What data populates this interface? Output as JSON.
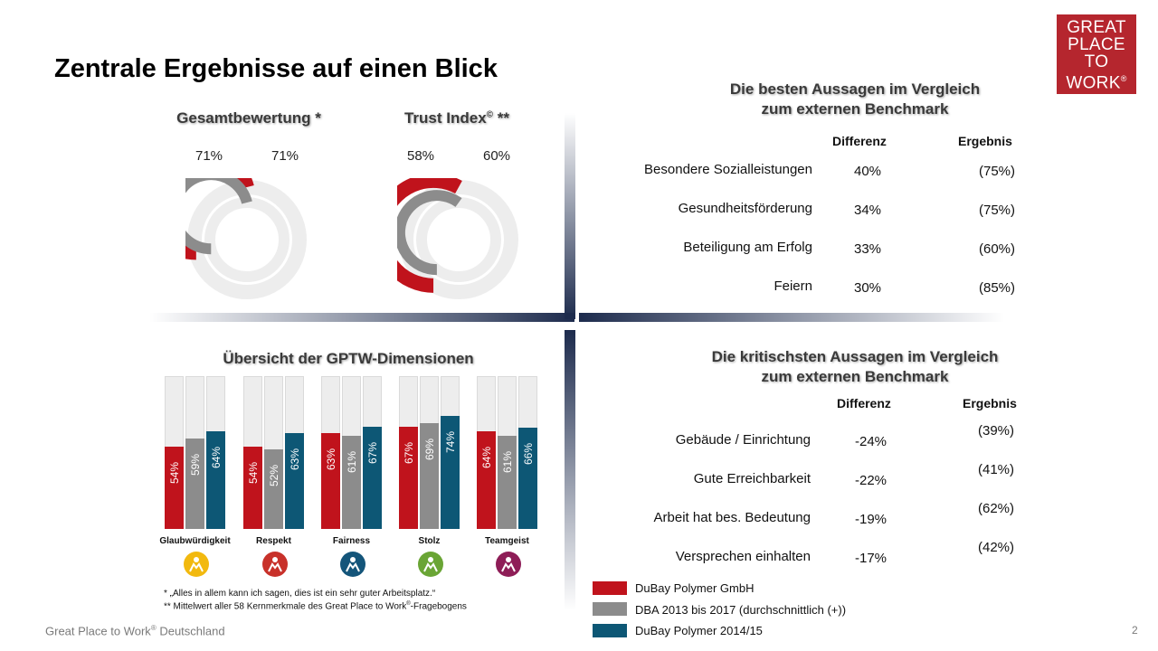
{
  "title": "Zentrale Ergebnisse auf einen Blick",
  "logo": {
    "lines": [
      "GREAT",
      "PLACE",
      "TO",
      "WORK"
    ],
    "mark": "®"
  },
  "footer": {
    "left": "Great Place to Work",
    "mark": "®",
    "left_suffix": " Deutschland",
    "page": "2"
  },
  "colors": {
    "red": "#c0131c",
    "gray": "#8c8c8c",
    "teal": "#0d5775",
    "track": "#ededed"
  },
  "chart_data": [
    {
      "type": "pie",
      "title": "Gesamtbewertung  *",
      "outer": {
        "value": 71,
        "label": "71%",
        "color": "#c0131c"
      },
      "inner": {
        "value": 71,
        "label": "71%",
        "color": "#8c8c8c"
      }
    },
    {
      "type": "pie",
      "title": "Trust  Index",
      "title_mark": "©",
      "title_suffix": " **",
      "outer": {
        "value": 58,
        "label": "58%",
        "color": "#c0131c"
      },
      "inner": {
        "value": 60,
        "label": "60%",
        "color": "#8c8c8c"
      }
    },
    {
      "type": "bar",
      "title": "Übersicht  der  GPTW-Dimensionen",
      "categories": [
        "Glaubwürdigkeit",
        "Respekt",
        "Fairness",
        "Stolz",
        "Teamgeist"
      ],
      "ylim": [
        0,
        100
      ],
      "series": [
        {
          "name": "DuBay Polymer GmbH",
          "color": "#c0131c",
          "values": [
            54,
            54,
            63,
            67,
            64
          ],
          "labels": [
            "54%",
            "54%",
            "63%",
            "67%",
            "64%"
          ]
        },
        {
          "name": "DBA 2013 bis 2017 (durchschnittlich (+))",
          "color": "#8c8c8c",
          "values": [
            59,
            52,
            61,
            69,
            61
          ],
          "labels": [
            "59%",
            "52%",
            "61%",
            "69%",
            "61%"
          ]
        },
        {
          "name": "DuBay Polymer 2014/15",
          "color": "#0d5775",
          "values": [
            64,
            63,
            67,
            74,
            66
          ],
          "labels": [
            "64%",
            "63%",
            "67%",
            "74%",
            "66%"
          ]
        }
      ]
    },
    {
      "type": "table",
      "title_line1": "Die besten Aussagen im Vergleich",
      "title_line2": "zum externen Benchmark",
      "headers": [
        "Differenz",
        "Ergebnis"
      ],
      "rows": [
        {
          "label": "Besondere Sozialleistungen",
          "diff": "40%",
          "result": "(75%)"
        },
        {
          "label": "Gesundheitsförderung",
          "diff": "34%",
          "result": "(75%)"
        },
        {
          "label": "Beteiligung am Erfolg",
          "diff": "33%",
          "result": "(60%)"
        },
        {
          "label": "Feiern",
          "diff": "30%",
          "result": "(85%)"
        }
      ]
    },
    {
      "type": "table",
      "title_line1": "Die kritischsten Aussagen im Vergleich",
      "title_line2": "zum externen Benchmark",
      "headers": [
        "Differenz",
        "Ergebnis"
      ],
      "rows": [
        {
          "label": "Gebäude / Einrichtung",
          "diff": "-24%",
          "result": "(39%)"
        },
        {
          "label": "Gute Erreichbarkeit",
          "diff": "-22%",
          "result": "(41%)"
        },
        {
          "label": "Arbeit hat bes. Bedeutung",
          "diff": "-19%",
          "result": "(62%)"
        },
        {
          "label": "Versprechen einhalten",
          "diff": "-17%",
          "result": "(42%)"
        }
      ]
    }
  ],
  "dimension_icons": [
    {
      "name": "glaubwuerdigkeit-icon",
      "color": "#f2b90f"
    },
    {
      "name": "respekt-icon",
      "color": "#c8312a"
    },
    {
      "name": "fairness-icon",
      "color": "#14557a"
    },
    {
      "name": "stolz-icon",
      "color": "#6aa535"
    },
    {
      "name": "teamgeist-icon",
      "color": "#8e1d57"
    }
  ],
  "legend": [
    {
      "label": "DuBay Polymer GmbH",
      "color": "#c0131c"
    },
    {
      "label": "DBA 2013 bis 2017 (durchschnittlich (+))",
      "color": "#8c8c8c"
    },
    {
      "label": "DuBay Polymer 2014/15",
      "color": "#0d5775"
    }
  ],
  "footnotes": [
    "*   „Alles in allem kann ich sagen, dies ist ein sehr guter Arbeitsplatz.“",
    "** Mittelwert aller 58 Kernmerkmale  des Great Place to Work",
    "-Fragebogens"
  ]
}
